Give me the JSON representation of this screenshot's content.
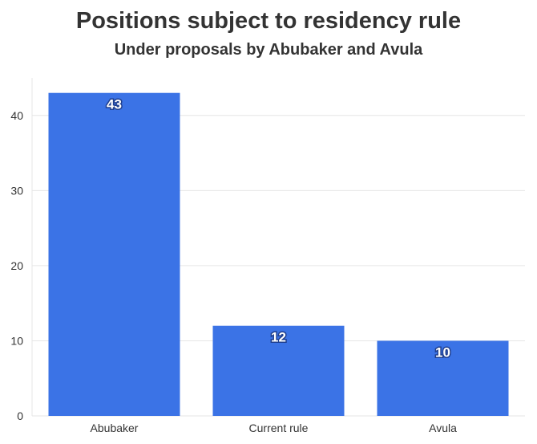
{
  "chart_data": {
    "type": "bar",
    "title": "Positions subject to residency rule",
    "subtitle": "Under proposals by Abubaker and Avula",
    "categories": [
      "Abubaker",
      "Current rule",
      "Avula"
    ],
    "values": [
      43,
      12,
      10
    ],
    "data_labels": [
      "43",
      "12",
      "10"
    ],
    "y_ticks": [
      0,
      10,
      20,
      30,
      40
    ],
    "ylim": [
      0,
      45
    ],
    "xlabel": "",
    "ylabel": "",
    "grid": "horizontal",
    "bar_color": "#3b73e6",
    "gridline_color": "#e6e6e6"
  }
}
